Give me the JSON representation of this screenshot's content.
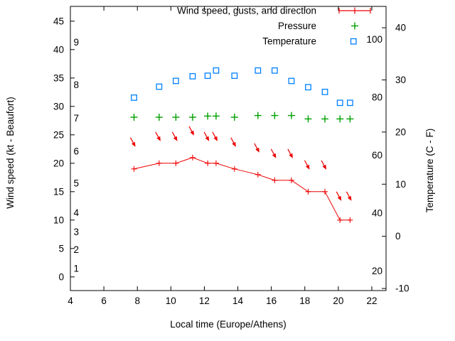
{
  "chart_data": {
    "type": "line",
    "title": "",
    "xlabel": "Local time (Europe/Athens)",
    "ylabel_left": "Wind speed (kt - Beaufort)",
    "ylabel_right": "Temperature (C - F)",
    "grid": "off",
    "legend_position": "top-right-inside",
    "x_axis": {
      "range": [
        4,
        22.85
      ],
      "ticks": [
        4,
        6,
        8,
        10,
        12,
        14,
        16,
        18,
        20,
        22
      ]
    },
    "y_left_axis": {
      "unit": "kt",
      "range": [
        -2.4,
        47.6
      ],
      "ticks": [
        0,
        5,
        10,
        15,
        20,
        25,
        30,
        35,
        40,
        45
      ],
      "beaufort_labels": [
        {
          "label": "1",
          "kt": 1.5
        },
        {
          "label": "2",
          "kt": 4.8
        },
        {
          "label": "3",
          "kt": 7.9
        },
        {
          "label": "4",
          "kt": 11.3
        },
        {
          "label": "5",
          "kt": 16.5
        },
        {
          "label": "6",
          "kt": 22.1
        },
        {
          "label": "7",
          "kt": 27.9
        },
        {
          "label": "8",
          "kt": 33.8
        },
        {
          "label": "9",
          "kt": 41.3
        }
      ]
    },
    "y_right_axis": {
      "unit": "C",
      "range": [
        -10.4,
        44.1
      ],
      "ticks": [
        -10,
        0,
        10,
        20,
        30,
        40
      ],
      "fahrenheit_labels": [
        {
          "label": "20",
          "f": 20
        },
        {
          "label": "40",
          "f": 40
        },
        {
          "label": "60",
          "f": 60
        },
        {
          "label": "80",
          "f": 80
        },
        {
          "label": "100",
          "f": 100
        }
      ]
    },
    "legend": [
      {
        "label": "Wind speed, gusts, and direction",
        "marker": "errorbar-line-plus",
        "color": "#ee0000"
      },
      {
        "label": "Pressure",
        "marker": "plus",
        "color": "#00a000"
      },
      {
        "label": "Temperature",
        "marker": "open-square",
        "color": "#0080ff"
      }
    ],
    "x_hours": [
      7.8,
      9.3,
      10.3,
      11.3,
      12.2,
      12.7,
      13.8,
      15.2,
      16.2,
      17.2,
      18.2,
      19.2,
      20.1,
      20.7
    ],
    "series": [
      {
        "name": "wind-speed-kt",
        "style": "line+plus",
        "axis": "left",
        "color": "#ee0000",
        "values": [
          19,
          20,
          20,
          21,
          20,
          20,
          19,
          18,
          17,
          17,
          15,
          15,
          10,
          10
        ]
      },
      {
        "name": "wind-gusts-kt",
        "style": "direction-arrow",
        "axis": "left",
        "color": "#ee0000",
        "arrow_direction": "down-right",
        "values": [
          23,
          24,
          24,
          25,
          24,
          24,
          23,
          22,
          21,
          21,
          19,
          19,
          13.5,
          13.5
        ]
      },
      {
        "name": "pressure-plotted-level-kt-scale",
        "style": "plus",
        "axis": "left",
        "color": "#00a000",
        "values": [
          28.1,
          28.1,
          28.1,
          28.1,
          28.3,
          28.3,
          28.1,
          28.4,
          28.4,
          28.4,
          27.8,
          27.8,
          27.8,
          27.8
        ]
      },
      {
        "name": "temperature-c",
        "style": "open-square",
        "axis": "right",
        "color": "#0080ff",
        "values": [
          26.6,
          28.7,
          29.8,
          30.7,
          30.8,
          31.8,
          30.8,
          31.8,
          31.8,
          29.8,
          28.6,
          27.7,
          25.6,
          25.6
        ]
      }
    ]
  }
}
